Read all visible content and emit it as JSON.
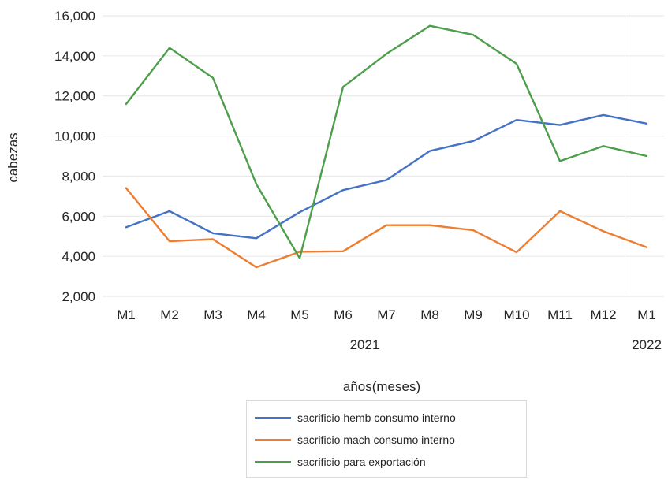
{
  "chart_data": {
    "type": "line",
    "xlabel": "años(meses)",
    "ylabel": "cabezas",
    "ylim": [
      2000,
      16000
    ],
    "yticks": [
      "2,000",
      "4,000",
      "6,000",
      "8,000",
      "10,000",
      "12,000",
      "14,000",
      "16,000"
    ],
    "categories": [
      "M1",
      "M2",
      "M3",
      "M4",
      "M5",
      "M6",
      "M7",
      "M8",
      "M9",
      "M10",
      "M11",
      "M12",
      "M1"
    ],
    "year_labels": [
      "2021",
      "2022"
    ],
    "grid": "horizontal",
    "legend_position": "bottom",
    "series": [
      {
        "name": "sacrificio hemb consumo interno",
        "color": "#4472c4",
        "values": [
          5450,
          6250,
          5150,
          4900,
          6200,
          7300,
          7800,
          9250,
          9750,
          10800,
          10550,
          11050,
          10620
        ]
      },
      {
        "name": "sacrificio mach consumo interno",
        "color": "#ed7d31",
        "values": [
          7400,
          4750,
          4850,
          3450,
          4220,
          4250,
          5550,
          5550,
          5300,
          4200,
          6250,
          5250,
          4450
        ]
      },
      {
        "name": "sacrificio para exportación",
        "color": "#4d9e4b",
        "values": [
          11600,
          14400,
          12900,
          7600,
          3900,
          12450,
          14100,
          15500,
          15050,
          13600,
          8750,
          9500,
          9000
        ]
      }
    ]
  }
}
